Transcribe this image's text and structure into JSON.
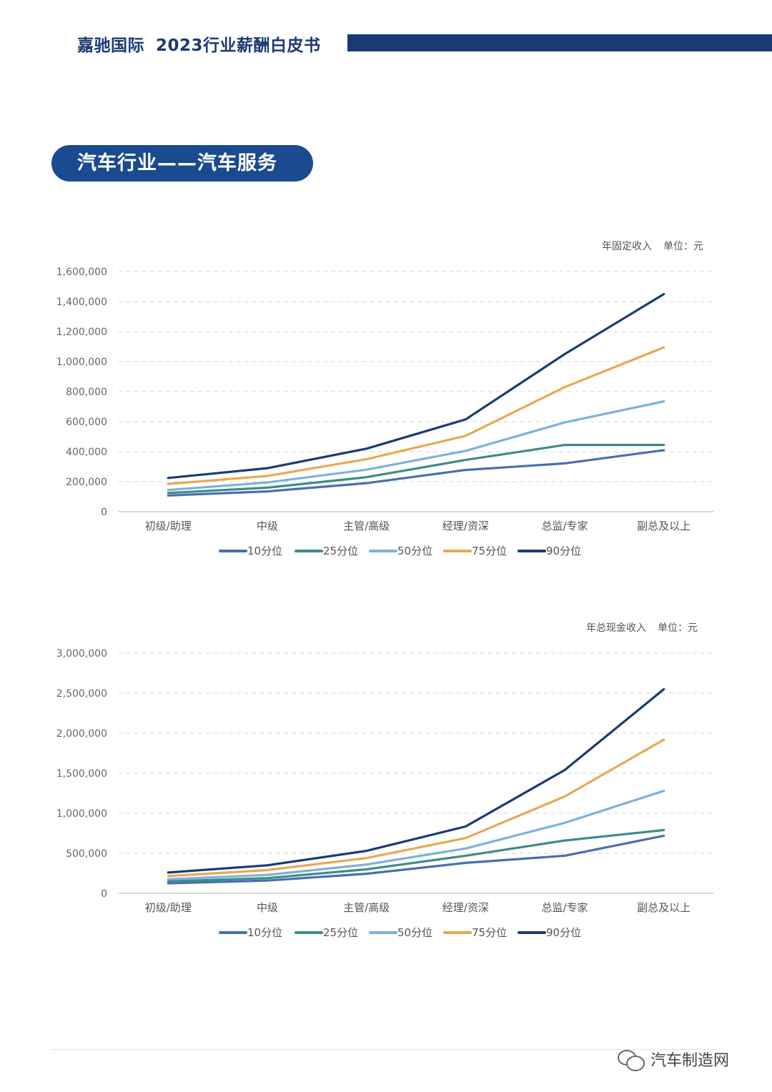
{
  "header": {
    "brand": "嘉驰国际",
    "book_title": "2023行业薪酬白皮书"
  },
  "section": {
    "title": "汽车行业——汽车服务"
  },
  "colors": {
    "p10": "#4a6fb0",
    "p25": "#3e8c86",
    "p50": "#7fb0dc",
    "p75": "#e9a852",
    "p90": "#1c3a75",
    "grid": "#d6d6d6",
    "header": "#1b3a73",
    "pill": "#1a4a8f"
  },
  "chart_data": [
    {
      "type": "line",
      "unit_title": "年固定收入",
      "unit": "单位：元",
      "categories": [
        "初级/助理",
        "中级",
        "主管/高级",
        "经理/资深",
        "总监/专家",
        "副总及以上"
      ],
      "yticks": [
        "0",
        "200,000",
        "400,000",
        "600,000",
        "800,000",
        "1,000,000",
        "1,200,000",
        "1,400,000",
        "1,600,000"
      ],
      "ylim": [
        0,
        1600000
      ],
      "grid": true,
      "legend_position": "bottom",
      "series": [
        {
          "name": "10分位",
          "values": [
            108000,
            135000,
            190000,
            278000,
            322000,
            410000
          ]
        },
        {
          "name": "25分位",
          "values": [
            125000,
            160000,
            230000,
            345000,
            445000,
            445000
          ]
        },
        {
          "name": "50分位",
          "values": [
            145000,
            195000,
            280000,
            405000,
            595000,
            735000
          ]
        },
        {
          "name": "75分位",
          "values": [
            185000,
            238000,
            350000,
            505000,
            830000,
            1095000
          ]
        },
        {
          "name": "90分位",
          "values": [
            225000,
            290000,
            420000,
            615000,
            1050000,
            1450000
          ]
        }
      ]
    },
    {
      "type": "line",
      "unit_title": "年总现金收入",
      "unit": "单位：元",
      "categories": [
        "初级/助理",
        "中级",
        "主管/高级",
        "经理/资深",
        "总监/专家",
        "副总及以上"
      ],
      "yticks": [
        "0",
        "500,000",
        "1,000,000",
        "1,500,000",
        "2,000,000",
        "2,500,000",
        "3,000,000"
      ],
      "ylim": [
        0,
        3000000
      ],
      "grid": true,
      "legend_position": "bottom",
      "series": [
        {
          "name": "10分位",
          "values": [
            125000,
            160000,
            245000,
            380000,
            470000,
            720000
          ]
        },
        {
          "name": "25分位",
          "values": [
            150000,
            190000,
            300000,
            470000,
            660000,
            790000
          ]
        },
        {
          "name": "50分位",
          "values": [
            175000,
            230000,
            360000,
            560000,
            880000,
            1280000
          ]
        },
        {
          "name": "75分位",
          "values": [
            215000,
            290000,
            440000,
            690000,
            1210000,
            1920000
          ]
        },
        {
          "name": "90分位",
          "values": [
            260000,
            350000,
            530000,
            835000,
            1540000,
            2550000
          ]
        }
      ]
    }
  ],
  "watermark": {
    "text": "汽车制造网"
  }
}
